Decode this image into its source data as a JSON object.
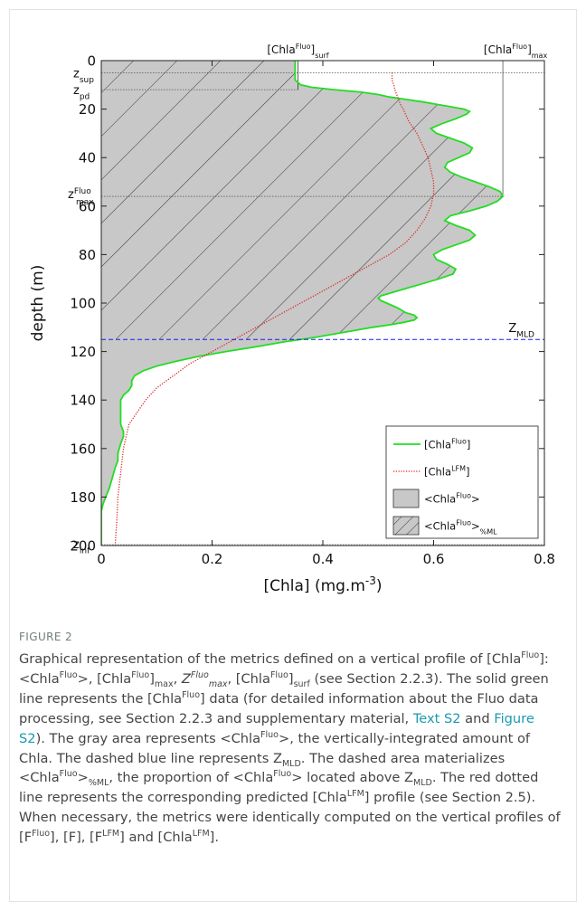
{
  "figure_label": "FIGURE 2",
  "caption": {
    "p01": "Graphical representation of the metrics defined on a vertical profile of [Chla",
    "p02": "Fluo",
    "p03": "]: <Chla",
    "p04": "Fluo",
    "p05": ">, [Chla",
    "p06": "Fluo",
    "p07": "]",
    "p08": "max",
    "p09": ", ",
    "p10": "Z",
    "p11": "Fluo",
    "p12": "max",
    "p13": ", [Chla",
    "p14": "Fluo",
    "p15": "]",
    "p16": "surf",
    "p17": " (see Section 2.2.3). The solid green line represents the [Chla",
    "p18": "Fluo",
    "p19": "] data (for detailed information about the Fluo data processing, see Section 2.2.3 and supplementary material, ",
    "p20": "Text S2",
    "p21": " and ",
    "p22": "Figure S2",
    "p23": "). The gray area represents <Chla",
    "p24": "Fluo",
    "p25": ">, the vertically-integrated amount of Chla. The dashed blue line represents Z",
    "p26": "MLD",
    "p27": ". The dashed area materializes <Chla",
    "p28": "Fluo",
    "p29": ">",
    "p30": "%ML",
    "p31": ", the proportion of <Chla",
    "p32": "Fluo",
    "p33": "> located above Z",
    "p34": "MLD",
    "p35": ". The red dotted line represents the corresponding predicted [Chla",
    "p36": "LFM",
    "p37": "] profile (see Section 2.5). When necessary, the metrics were identically computed on the vertical profiles of [F",
    "p38": "Fluo",
    "p39": "], [F], [F",
    "p40": "LFM",
    "p41": "] and [Chla",
    "p42": "LFM",
    "p43": "]."
  },
  "colors": {
    "fluo_line": "#22dd22",
    "lfm_line": "#dd2222",
    "area_fill": "#c8c8c8",
    "mld_line": "#1a1aee",
    "link": "#1a9ab0"
  },
  "chart_data": {
    "type": "line",
    "xlabel": "[Chla] (mg.m-3)",
    "xlabel_parts": {
      "base": "[Chla] (mg.m",
      "sup": "-3",
      "tail": ")"
    },
    "ylabel": "depth (m)",
    "xlim": [
      0,
      0.8
    ],
    "ylim": [
      200,
      0
    ],
    "y_inverted": true,
    "x_ticks": [
      "0",
      "0.2",
      "0.4",
      "0.6",
      "0.8"
    ],
    "y_ticks": [
      "0",
      "20",
      "40",
      "60",
      "80",
      "100",
      "120",
      "140",
      "160",
      "180",
      "200"
    ],
    "grid": false,
    "legend_position": "bottom-right",
    "legend": [
      {
        "key": "fluo",
        "base": "[Chla",
        "sup": "Fluo",
        "tail": "]"
      },
      {
        "key": "lfm",
        "base": "[Chla",
        "sup": "LFM",
        "tail": "]"
      },
      {
        "key": "area",
        "base": "<Chla",
        "sup": "Fluo",
        "tail": ">"
      },
      {
        "key": "hatch",
        "base": "<Chla",
        "sup": "Fluo",
        "tail": ">",
        "sub": "%ML"
      }
    ],
    "depth_labels": {
      "z_sup": {
        "base": "z",
        "sub": "sup",
        "depth": 5
      },
      "z_pd": {
        "base": "z",
        "sub": "pd",
        "depth": 12
      },
      "z_max": {
        "base": "z",
        "sup": "Fluo",
        "sub": "max",
        "depth": 56
      },
      "z_inf": {
        "base": "z",
        "sub": "inf",
        "depth": 200
      }
    },
    "top_labels": {
      "surf": {
        "base": "[Chla",
        "sup": "Fluo",
        "mid": "]",
        "sub": "surf",
        "value": 0.355
      },
      "max": {
        "base": "[Chla",
        "sup": "Fluo",
        "mid": "]",
        "sub": "max",
        "value": 0.725
      }
    },
    "mld": {
      "depth": 115,
      "label_base": "Z",
      "label_sub": "MLD"
    },
    "series": [
      {
        "key": "fluo",
        "name": "[ChlaFluo]",
        "points": [
          [
            0,
            0.35
          ],
          [
            5,
            0.35
          ],
          [
            8,
            0.35
          ],
          [
            10,
            0.36
          ],
          [
            11,
            0.38
          ],
          [
            12,
            0.42
          ],
          [
            13,
            0.47
          ],
          [
            14,
            0.5
          ],
          [
            15,
            0.52
          ],
          [
            16,
            0.55
          ],
          [
            17,
            0.58
          ],
          [
            18,
            0.605
          ],
          [
            19,
            0.63
          ],
          [
            20,
            0.655
          ],
          [
            21,
            0.665
          ],
          [
            22,
            0.66
          ],
          [
            24,
            0.64
          ],
          [
            26,
            0.615
          ],
          [
            28,
            0.595
          ],
          [
            30,
            0.605
          ],
          [
            32,
            0.63
          ],
          [
            34,
            0.655
          ],
          [
            36,
            0.67
          ],
          [
            38,
            0.665
          ],
          [
            40,
            0.645
          ],
          [
            42,
            0.625
          ],
          [
            44,
            0.62
          ],
          [
            46,
            0.63
          ],
          [
            48,
            0.65
          ],
          [
            50,
            0.675
          ],
          [
            52,
            0.7
          ],
          [
            54,
            0.72
          ],
          [
            56,
            0.725
          ],
          [
            58,
            0.715
          ],
          [
            60,
            0.695
          ],
          [
            62,
            0.665
          ],
          [
            64,
            0.63
          ],
          [
            66,
            0.62
          ],
          [
            68,
            0.64
          ],
          [
            70,
            0.665
          ],
          [
            72,
            0.675
          ],
          [
            74,
            0.665
          ],
          [
            76,
            0.64
          ],
          [
            78,
            0.615
          ],
          [
            80,
            0.6
          ],
          [
            82,
            0.605
          ],
          [
            84,
            0.625
          ],
          [
            86,
            0.64
          ],
          [
            88,
            0.635
          ],
          [
            90,
            0.61
          ],
          [
            92,
            0.58
          ],
          [
            94,
            0.55
          ],
          [
            96,
            0.52
          ],
          [
            97,
            0.505
          ],
          [
            98,
            0.5
          ],
          [
            99,
            0.505
          ],
          [
            100,
            0.515
          ],
          [
            102,
            0.535
          ],
          [
            104,
            0.55
          ],
          [
            105,
            0.565
          ],
          [
            106,
            0.57
          ],
          [
            107,
            0.565
          ],
          [
            108,
            0.545
          ],
          [
            109,
            0.52
          ],
          [
            110,
            0.49
          ],
          [
            112,
            0.44
          ],
          [
            114,
            0.39
          ],
          [
            116,
            0.33
          ],
          [
            118,
            0.28
          ],
          [
            120,
            0.225
          ],
          [
            122,
            0.175
          ],
          [
            124,
            0.135
          ],
          [
            126,
            0.1
          ],
          [
            128,
            0.075
          ],
          [
            130,
            0.06
          ],
          [
            132,
            0.055
          ],
          [
            134,
            0.055
          ],
          [
            136,
            0.05
          ],
          [
            138,
            0.04
          ],
          [
            140,
            0.035
          ],
          [
            145,
            0.035
          ],
          [
            150,
            0.035
          ],
          [
            153,
            0.04
          ],
          [
            155,
            0.04
          ],
          [
            158,
            0.035
          ],
          [
            162,
            0.03
          ],
          [
            165,
            0.03
          ],
          [
            168,
            0.025
          ],
          [
            172,
            0.02
          ],
          [
            176,
            0.015
          ],
          [
            180,
            0.008
          ],
          [
            183,
            0.003
          ],
          [
            186,
            0.0
          ],
          [
            200,
            0.0
          ]
        ]
      },
      {
        "key": "lfm",
        "name": "[ChlaLFM]",
        "points": [
          [
            5,
            0.525
          ],
          [
            8,
            0.525
          ],
          [
            10,
            0.528
          ],
          [
            12,
            0.53
          ],
          [
            15,
            0.535
          ],
          [
            18,
            0.54
          ],
          [
            20,
            0.545
          ],
          [
            25,
            0.555
          ],
          [
            30,
            0.57
          ],
          [
            35,
            0.58
          ],
          [
            40,
            0.59
          ],
          [
            45,
            0.595
          ],
          [
            50,
            0.6
          ],
          [
            55,
            0.6
          ],
          [
            60,
            0.595
          ],
          [
            65,
            0.585
          ],
          [
            70,
            0.57
          ],
          [
            75,
            0.55
          ],
          [
            80,
            0.52
          ],
          [
            85,
            0.48
          ],
          [
            90,
            0.44
          ],
          [
            95,
            0.4
          ],
          [
            100,
            0.36
          ],
          [
            105,
            0.32
          ],
          [
            110,
            0.28
          ],
          [
            115,
            0.24
          ],
          [
            120,
            0.2
          ],
          [
            125,
            0.16
          ],
          [
            130,
            0.13
          ],
          [
            135,
            0.1
          ],
          [
            140,
            0.08
          ],
          [
            145,
            0.065
          ],
          [
            150,
            0.05
          ],
          [
            160,
            0.04
          ],
          [
            170,
            0.035
          ],
          [
            180,
            0.03
          ],
          [
            190,
            0.028
          ],
          [
            200,
            0.025
          ]
        ]
      }
    ]
  }
}
